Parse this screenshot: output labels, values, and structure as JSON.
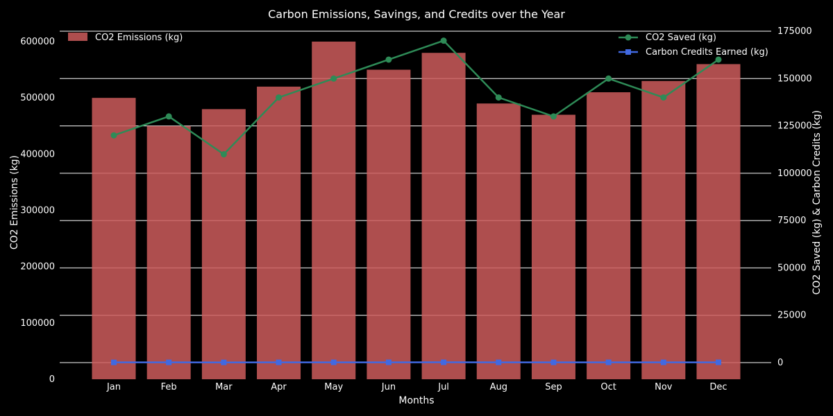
{
  "chart_data": {
    "type": "bar",
    "title": "Carbon Emissions, Savings, and Credits over the Year",
    "xlabel": "Months",
    "ylabel": "CO2 Emissions (kg)",
    "ylabel_right": "CO2 Saved (kg) & Carbon Credits (kg)",
    "categories": [
      "Jan",
      "Feb",
      "Mar",
      "Apr",
      "May",
      "Jun",
      "Jul",
      "Aug",
      "Sep",
      "Oct",
      "Nov",
      "Dec"
    ],
    "ylim": [
      0,
      600000
    ],
    "ylim_right": [
      -8000,
      175000
    ],
    "yticks": [
      "0",
      "100000",
      "200000",
      "300000",
      "400000",
      "500000",
      "600000"
    ],
    "yticks_right": [
      "0",
      "25000",
      "50000",
      "75000",
      "100000",
      "125000",
      "150000",
      "175000"
    ],
    "grid": true,
    "series": [
      {
        "name": "CO2 Emissions (kg)",
        "type": "bar",
        "axis": "left",
        "color": "#cd5c5c",
        "values": [
          500000,
          450000,
          480000,
          520000,
          600000,
          550000,
          580000,
          490000,
          470000,
          510000,
          530000,
          560000
        ]
      },
      {
        "name": "CO2 Saved (kg)",
        "type": "line",
        "marker": "circle",
        "axis": "right",
        "color": "#2e8b57",
        "values": [
          120000,
          130000,
          110000,
          140000,
          150000,
          160000,
          170000,
          140000,
          130000,
          150000,
          140000,
          160000
        ]
      },
      {
        "name": "Carbon Credits Earned (kg)",
        "type": "line",
        "marker": "square",
        "axis": "right",
        "color": "#4169e1",
        "values": [
          120,
          130,
          110,
          140,
          150,
          160,
          170,
          140,
          130,
          150,
          140,
          160
        ]
      }
    ],
    "legends": {
      "left": "top-left",
      "right": "top-right"
    }
  }
}
